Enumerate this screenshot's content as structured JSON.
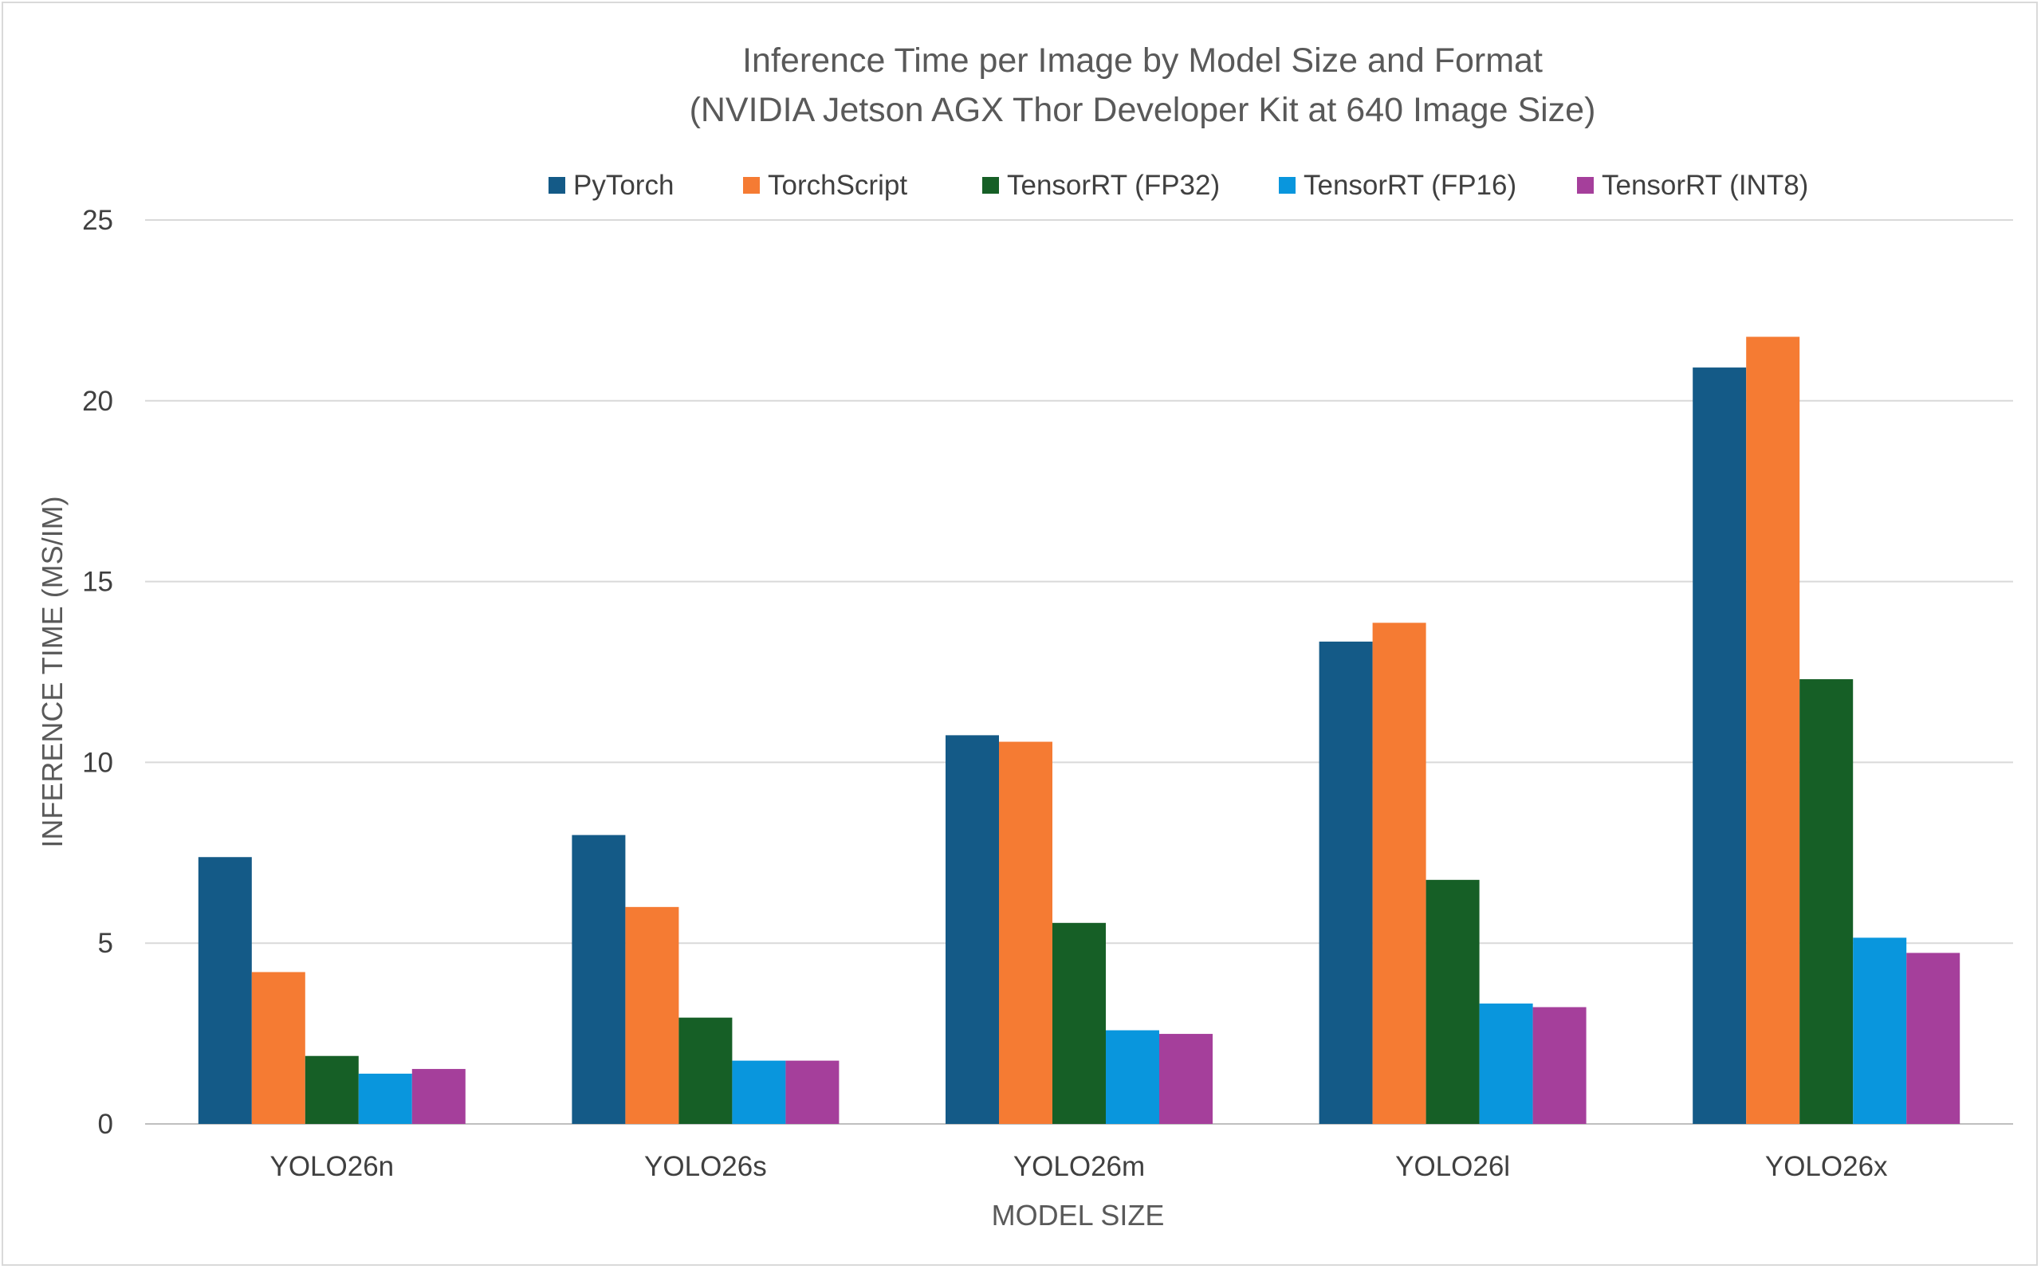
{
  "chart_data": {
    "type": "bar",
    "title_lines": [
      "Inference Time per Image by Model Size and Format",
      "(NVIDIA Jetson AGX Thor Developer Kit at 640 Image Size)"
    ],
    "xlabel": "MODEL SIZE",
    "ylabel": "INFERENCE TIME (MS/IM)",
    "ylim": [
      0,
      25
    ],
    "yticks": [
      "0",
      "5",
      "10",
      "15",
      "20",
      "25"
    ],
    "ytick_values": [
      0,
      5,
      10,
      15,
      20,
      25
    ],
    "grid": true,
    "legend_position": "top",
    "categories": [
      "YOLO26n",
      "YOLO26s",
      "YOLO26m",
      "YOLO26l",
      "YOLO26x"
    ],
    "series": [
      {
        "name": "PyTorch",
        "color": "#145a87",
        "values": [
          7.38,
          7.99,
          10.75,
          13.34,
          20.92
        ]
      },
      {
        "name": "TorchScript",
        "color": "#f57b33",
        "values": [
          4.2,
          6.0,
          10.57,
          13.86,
          21.77
        ]
      },
      {
        "name": "TensorRT (FP32)",
        "color": "#165f26",
        "values": [
          1.88,
          2.94,
          5.56,
          6.75,
          12.3
        ]
      },
      {
        "name": "TensorRT (FP16)",
        "color": "#0996dd",
        "values": [
          1.39,
          1.75,
          2.59,
          3.33,
          5.15
        ]
      },
      {
        "name": "TensorRT (INT8)",
        "color": "#a53f9b",
        "values": [
          1.52,
          1.75,
          2.49,
          3.23,
          4.73
        ]
      }
    ]
  }
}
